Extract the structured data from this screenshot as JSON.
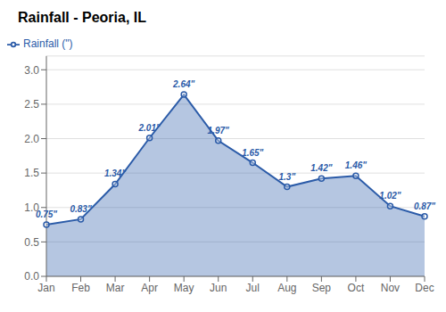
{
  "chart_data": {
    "type": "area",
    "title": "Rainfall - Peoria, IL",
    "categories": [
      "Jan",
      "Feb",
      "Mar",
      "Apr",
      "May",
      "Jun",
      "Jul",
      "Aug",
      "Sep",
      "Oct",
      "Nov",
      "Dec"
    ],
    "series": [
      {
        "name": "Rainfall (\")",
        "color": "#2B5BA8",
        "marker": "circle",
        "values": [
          0.75,
          0.83,
          1.34,
          2.01,
          2.64,
          1.97,
          1.65,
          1.3,
          1.42,
          1.46,
          1.02,
          0.87
        ],
        "value_labels": [
          "0.75\"",
          "0.83\"",
          "1.34\"",
          "2.01\"",
          "2.64\"",
          "1.97\"",
          "1.65\"",
          "1.3\"",
          "1.42\"",
          "1.46\"",
          "1.02\"",
          "0.87\""
        ]
      }
    ],
    "ylim": [
      0.0,
      3.2
    ],
    "yticks": [
      {
        "value": 0.0,
        "label": "0.0"
      },
      0.5,
      {
        "value": 1.0,
        "label": "1.0"
      },
      1.5,
      {
        "value": 2.0,
        "label": "2.0"
      },
      2.5,
      {
        "value": 3.0,
        "label": "3.0"
      }
    ],
    "grid": true,
    "legend": "upper left",
    "data_labels": true
  }
}
